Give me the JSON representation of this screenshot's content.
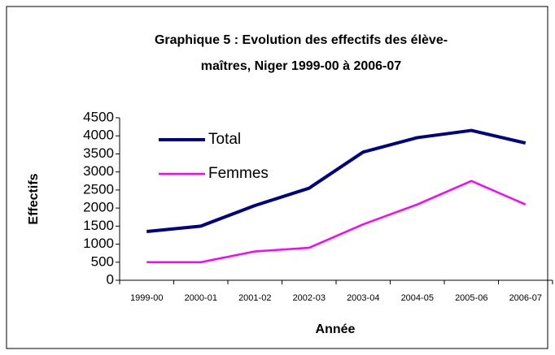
{
  "chart_data": {
    "type": "line",
    "title": [
      "Graphique 5 : Evolution des effectifs des  élève-",
      "maîtres, Niger 1999-00 à 2006-07"
    ],
    "x_label": "Année",
    "y_label": "Effectifs",
    "categories": [
      "1999-00",
      "2000-01",
      "2001-02",
      "2002-03",
      "2003-04",
      "2004-05",
      "2005-06",
      "2006-07"
    ],
    "series": [
      {
        "name": "Total",
        "color": "#000080",
        "values": [
          1350,
          1500,
          2070,
          2550,
          3550,
          3950,
          4150,
          3800
        ]
      },
      {
        "name": "Femmes",
        "color": "#ff00ff",
        "values": [
          500,
          500,
          800,
          900,
          1550,
          2100,
          2750,
          2100
        ]
      }
    ],
    "ylim": [
      0,
      4500
    ],
    "yticks": [
      0,
      500,
      1000,
      1500,
      2000,
      2500,
      3000,
      3500,
      4000,
      4500
    ],
    "legend": "upper left"
  }
}
